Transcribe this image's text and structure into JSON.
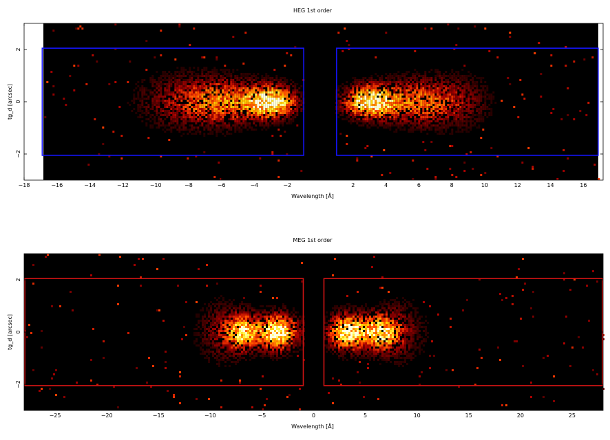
{
  "chart_data": [
    {
      "type": "heatmap",
      "title": "HEG 1st order",
      "xlabel": "Wavelength [Å]",
      "ylabel": "tg_d [arcsec]",
      "xlim": [
        -18,
        17.2
      ],
      "ylim": [
        -3,
        3
      ],
      "data_xrange": [
        -16.9,
        16.9
      ],
      "xticks": [
        -18,
        -16,
        -14,
        -12,
        -10,
        -8,
        -6,
        -4,
        -2,
        2,
        4,
        6,
        8,
        10,
        12,
        14,
        16
      ],
      "yticks": [
        -2,
        0,
        2
      ],
      "colormap": "black-red-yellow-white",
      "background_color": "#000000",
      "region_color": "#1414ff",
      "regions": [
        {
          "x": [
            -16.9,
            -1.0
          ],
          "y": [
            -2.05,
            2.05
          ]
        },
        {
          "x": [
            1.0,
            16.9
          ],
          "y": [
            -2.05,
            2.05
          ]
        }
      ],
      "sources": [
        {
          "x": -3.0,
          "y": 0.0,
          "sx": 1.0,
          "sy": 0.4,
          "weight": 1.0
        },
        {
          "x": -5.8,
          "y": 0.0,
          "sx": 1.6,
          "sy": 0.55,
          "weight": 0.55
        },
        {
          "x": -8.5,
          "y": 0.0,
          "sx": 1.8,
          "sy": 0.7,
          "weight": 0.25
        },
        {
          "x": 3.0,
          "y": 0.0,
          "sx": 1.0,
          "sy": 0.4,
          "weight": 1.0
        },
        {
          "x": 5.8,
          "y": 0.0,
          "sx": 1.6,
          "sy": 0.55,
          "weight": 0.5
        },
        {
          "x": 8.2,
          "y": 0.0,
          "sx": 1.5,
          "sy": 0.7,
          "weight": 0.2
        }
      ]
    },
    {
      "type": "heatmap",
      "title": "MEG 1st order",
      "xlabel": "Wavelength [Å]",
      "ylabel": "tg_d [arcsec]",
      "xlim": [
        -28,
        28
      ],
      "ylim": [
        -3,
        3
      ],
      "data_xrange": [
        -28,
        28
      ],
      "xticks": [
        -25,
        -20,
        -15,
        -10,
        -5,
        0,
        5,
        10,
        15,
        20,
        25
      ],
      "yticks": [
        -2,
        0,
        2
      ],
      "colormap": "black-red-yellow-white",
      "background_color": "#000000",
      "region_color": "#d21414",
      "regions": [
        {
          "x": [
            -28,
            -1.0
          ],
          "y": [
            -2.05,
            2.05
          ]
        },
        {
          "x": [
            1.0,
            28
          ],
          "y": [
            -2.05,
            2.05
          ]
        }
      ],
      "sources": [
        {
          "x": -3.4,
          "y": 0.0,
          "sx": 1.2,
          "sy": 0.45,
          "weight": 1.0
        },
        {
          "x": -6.8,
          "y": 0.0,
          "sx": 1.2,
          "sy": 0.45,
          "weight": 0.8
        },
        {
          "x": -9.0,
          "y": 0.0,
          "sx": 1.6,
          "sy": 0.8,
          "weight": 0.2
        },
        {
          "x": 3.3,
          "y": 0.0,
          "sx": 1.2,
          "sy": 0.45,
          "weight": 1.0
        },
        {
          "x": 6.5,
          "y": 0.0,
          "sx": 1.2,
          "sy": 0.45,
          "weight": 0.85
        },
        {
          "x": 8.5,
          "y": 0.0,
          "sx": 1.6,
          "sy": 0.8,
          "weight": 0.2
        }
      ]
    }
  ]
}
